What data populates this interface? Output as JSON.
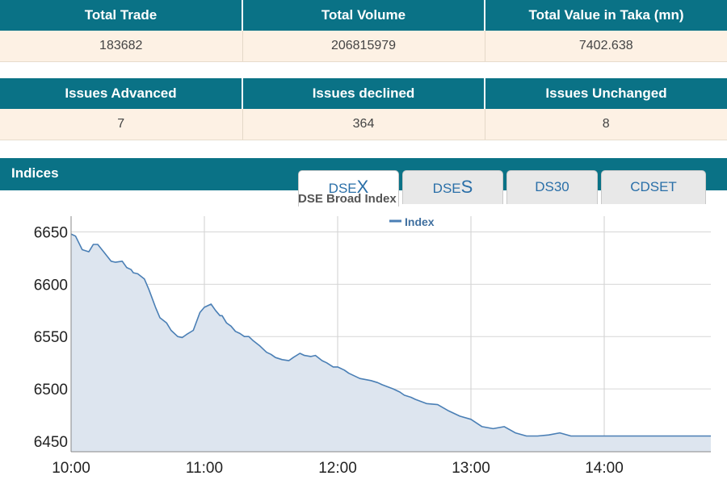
{
  "summary": {
    "headers": [
      "Total Trade",
      "Total Volume",
      "Total Value in Taka (mn)"
    ],
    "values": [
      "183682",
      "206815979",
      "7402.638"
    ]
  },
  "issues": {
    "headers": [
      "Issues Advanced",
      "Issues declined",
      "Issues Unchanged"
    ],
    "values": [
      "7",
      "364",
      "8"
    ]
  },
  "indices": {
    "title": "Indices",
    "tabs": [
      {
        "prefix": "DSE",
        "letter": "X",
        "active": true
      },
      {
        "prefix": "DSE",
        "letter": "S",
        "active": false
      },
      {
        "label": "DS30",
        "active": false
      },
      {
        "label": "CDSET",
        "active": false
      }
    ]
  },
  "colors": {
    "header_bg": "#0a7286",
    "row_bg": "#fdf1e4",
    "line": "#4a7fb5",
    "area": "#dde5ef"
  },
  "chart_data": {
    "type": "area",
    "title": "DSE Broad Index",
    "legend": "Index",
    "legend_position": "top-center",
    "grid": true,
    "x_ticks": [
      "10:00",
      "11:00",
      "12:00",
      "13:00",
      "14:00"
    ],
    "y_ticks": [
      6650,
      6600,
      6550,
      6500,
      6450
    ],
    "xlim": [
      "10:00",
      "14:48"
    ],
    "ylim": [
      6440,
      6665
    ],
    "series": [
      {
        "name": "Index",
        "x": [
          "10:00",
          "10:02",
          "10:05",
          "10:08",
          "10:10",
          "10:12",
          "10:15",
          "10:18",
          "10:20",
          "10:23",
          "10:25",
          "10:27",
          "10:28",
          "10:30",
          "10:33",
          "10:35",
          "10:38",
          "10:40",
          "10:43",
          "10:45",
          "10:48",
          "10:50",
          "10:52",
          "10:55",
          "10:58",
          "11:00",
          "11:03",
          "11:05",
          "11:07",
          "11:08",
          "11:10",
          "11:12",
          "11:14",
          "11:16",
          "11:18",
          "11:20",
          "11:22",
          "11:25",
          "11:28",
          "11:30",
          "11:32",
          "11:35",
          "11:38",
          "11:40",
          "11:43",
          "11:45",
          "11:48",
          "11:50",
          "11:53",
          "11:55",
          "11:58",
          "12:00",
          "12:03",
          "12:05",
          "12:10",
          "12:15",
          "12:18",
          "12:20",
          "12:25",
          "12:28",
          "12:30",
          "12:33",
          "12:35",
          "12:40",
          "12:45",
          "12:50",
          "12:55",
          "13:00",
          "13:05",
          "13:10",
          "13:15",
          "13:20",
          "13:25",
          "13:30",
          "13:35",
          "13:40",
          "13:45",
          "13:50",
          "13:55",
          "14:00",
          "14:05",
          "14:10",
          "14:15",
          "14:18",
          "14:20",
          "14:22",
          "14:25",
          "14:27",
          "14:30",
          "14:35",
          "14:40",
          "14:45",
          "14:48"
        ],
        "values": [
          6648,
          6646,
          6633,
          6631,
          6638,
          6638,
          6630,
          6622,
          6621,
          6622,
          6616,
          6614,
          6611,
          6610,
          6605,
          6595,
          6578,
          6568,
          6563,
          6556,
          6550,
          6549,
          6552,
          6556,
          6573,
          6578,
          6581,
          6575,
          6570,
          6570,
          6563,
          6560,
          6555,
          6553,
          6550,
          6550,
          6546,
          6541,
          6535,
          6533,
          6530,
          6528,
          6527,
          6530,
          6534,
          6532,
          6531,
          6532,
          6527,
          6525,
          6521,
          6521,
          6518,
          6515,
          6510,
          6508,
          6506,
          6504,
          6500,
          6497,
          6494,
          6492,
          6490,
          6486,
          6485,
          6479,
          6474,
          6471,
          6464,
          6462,
          6464,
          6458,
          6455,
          6455,
          6456,
          6458,
          6455,
          6455,
          6455,
          6455,
          6455,
          6455,
          6455,
          6455,
          6455,
          6455,
          6455,
          6455,
          6455,
          6455,
          6455,
          6455,
          6455
        ]
      }
    ]
  }
}
